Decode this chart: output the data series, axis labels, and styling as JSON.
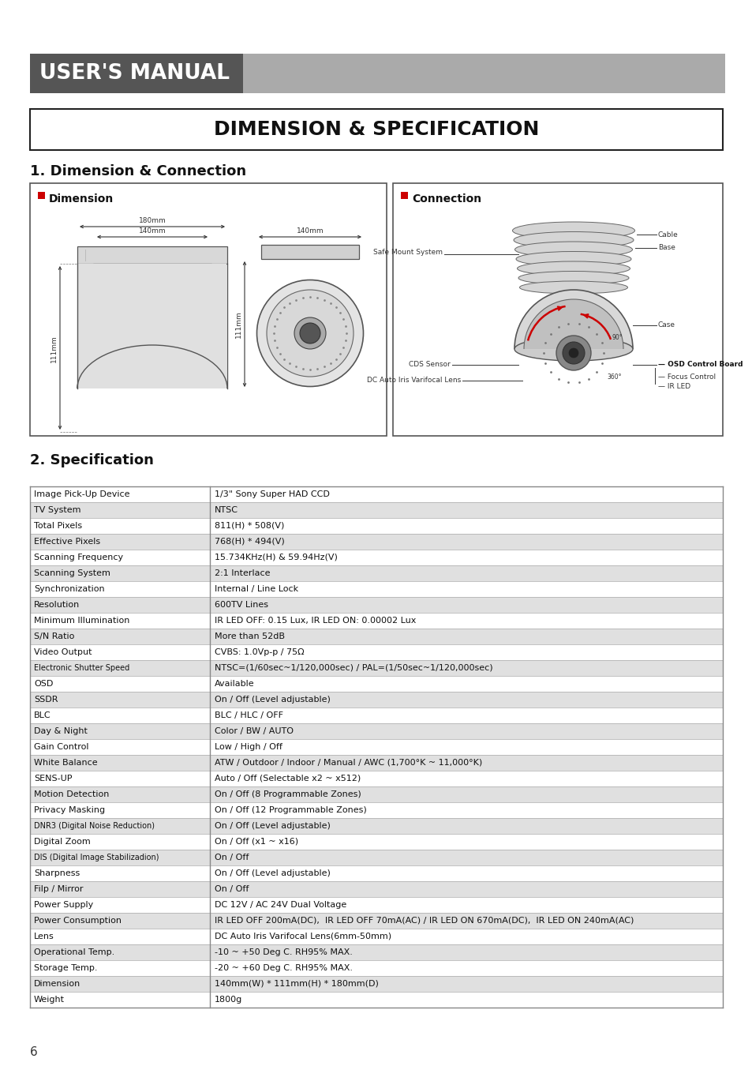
{
  "title_banner_text": "USER'S MANUAL",
  "title_banner_dark_color": "#555555",
  "title_banner_light_color": "#aaaaaa",
  "main_title": "DIMENSION & SPECIFICATION",
  "section1_title": "1. Dimension & Connection",
  "section2_title": "2. Specification",
  "dimension_label": "Dimension",
  "connection_label": "Connection",
  "red_accent": "#cc0000",
  "spec_rows": [
    [
      "Image Pick-Up Device",
      "1/3\" Sony Super HAD CCD",
      false
    ],
    [
      "TV System",
      "NTSC",
      true
    ],
    [
      "Total Pixels",
      "811(H) * 508(V)",
      false
    ],
    [
      "Effective Pixels",
      "768(H) * 494(V)",
      true
    ],
    [
      "Scanning Frequency",
      "15.734KHz(H) & 59.94Hz(V)",
      false
    ],
    [
      "Scanning System",
      "2:1 Interlace",
      true
    ],
    [
      "Synchronization",
      "Internal / Line Lock",
      false
    ],
    [
      "Resolution",
      "600TV Lines",
      true
    ],
    [
      "Minimum Illumination",
      "IR LED OFF: 0.15 Lux, IR LED ON: 0.00002 Lux",
      false
    ],
    [
      "S/N Ratio",
      "More than 52dB",
      true
    ],
    [
      "Video Output",
      "CVBS: 1.0Vp-p / 75Ω",
      false
    ],
    [
      "Electronic Shutter Speed",
      "NTSC=(1/60sec~1/120,000sec) / PAL=(1/50sec~1/120,000sec)",
      true
    ],
    [
      "OSD",
      "Available",
      false
    ],
    [
      "SSDR",
      "On / Off (Level adjustable)",
      true
    ],
    [
      "BLC",
      "BLC / HLC / OFF",
      false
    ],
    [
      "Day & Night",
      "Color / BW / AUTO",
      true
    ],
    [
      "Gain Control",
      "Low / High / Off",
      false
    ],
    [
      "White Balance",
      "ATW / Outdoor / Indoor / Manual / AWC (1,700°K ~ 11,000°K)",
      true
    ],
    [
      "SENS-UP",
      "Auto / Off (Selectable x2 ~ x512)",
      false
    ],
    [
      "Motion Detection",
      "On / Off (8 Programmable Zones)",
      true
    ],
    [
      "Privacy Masking",
      "On / Off (12 Programmable Zones)",
      false
    ],
    [
      "DNR3 (Digital Noise Reduction)",
      "On / Off (Level adjustable)",
      true
    ],
    [
      "Digital Zoom",
      "On / Off (x1 ~ x16)",
      false
    ],
    [
      "DIS (Digital Image Stabilizadion)",
      "On / Off",
      true
    ],
    [
      "Sharpness",
      "On / Off (Level adjustable)",
      false
    ],
    [
      "Filp / Mirror",
      "On / Off",
      true
    ],
    [
      "Power Supply",
      "DC 12V / AC 24V Dual Voltage",
      false
    ],
    [
      "Power Consumption",
      "IR LED OFF 200mA(DC),  IR LED OFF 70mA(AC) / IR LED ON 670mA(DC),  IR LED ON 240mA(AC)",
      true
    ],
    [
      "Lens",
      "DC Auto Iris Varifocal Lens(6mm-50mm)",
      false
    ],
    [
      "Operational Temp.",
      "-10 ~ +50 Deg C. RH95% MAX.",
      true
    ],
    [
      "Storage Temp.",
      "-20 ~ +60 Deg C. RH95% MAX.",
      false
    ],
    [
      "Dimension",
      "140mm(W) * 111mm(H) * 180mm(D)",
      true
    ],
    [
      "Weight",
      "1800g",
      false
    ]
  ],
  "page_number": "6",
  "bg_color": "#ffffff",
  "row_alt_color": "#e0e0e0",
  "row_normal_color": "#ffffff",
  "border_color": "#999999"
}
